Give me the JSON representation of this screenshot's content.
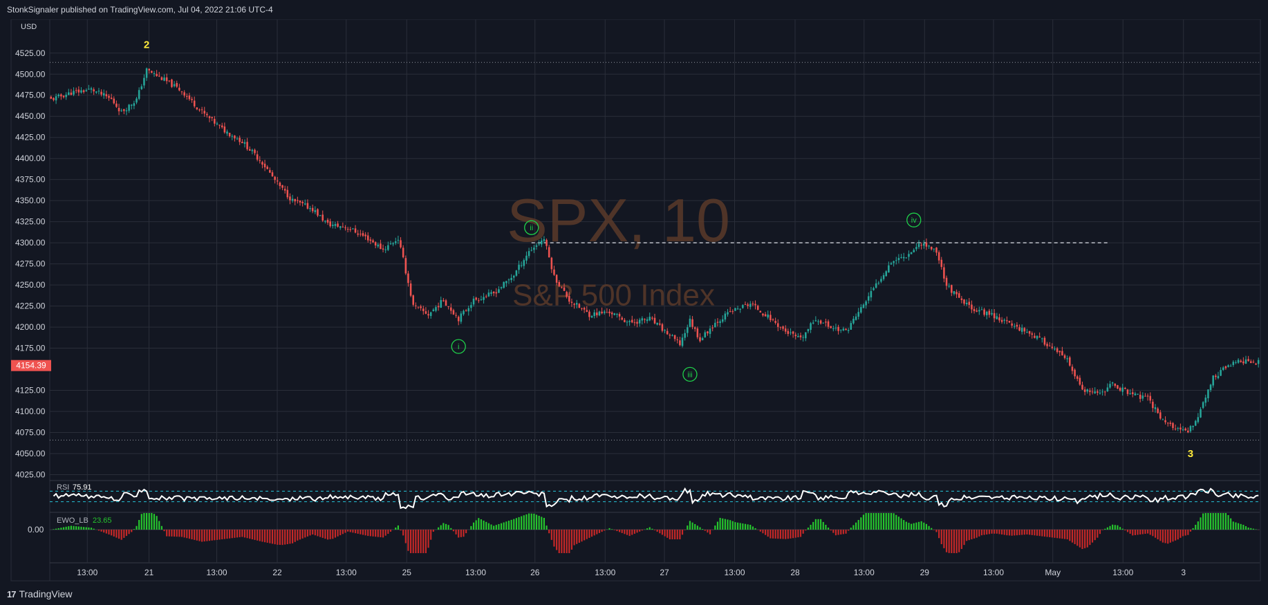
{
  "header": {
    "published_line": "StonkSignaler published on TradingView.com, Jul 04, 2022 21:06 UTC-4"
  },
  "footer": {
    "brand_mark": "17",
    "brand_name": "TradingView"
  },
  "colors": {
    "background": "#131722",
    "grid": "#2a2e39",
    "up_candle": "#26a69a",
    "down_candle": "#ef5350",
    "price_tag": "#ef5350",
    "wave_major": "#ffeb3b",
    "wave_minor": "#1fd14a",
    "watermark": "#5a3a2a",
    "rsi_line": "#ffffff",
    "rsi_band": "#26c6da",
    "ewo_positive": "#26c62e",
    "ewo_negative": "#c62828"
  },
  "chart_data": {
    "type": "candlestick",
    "symbol_watermark": "SPX, 10",
    "name_watermark": "S&P 500 Index",
    "currency_label": "USD",
    "y_ticks": [
      "4525.00",
      "4500.00",
      "4475.00",
      "4450.00",
      "4425.00",
      "4400.00",
      "4375.00",
      "4350.00",
      "4325.00",
      "4300.00",
      "4275.00",
      "4250.00",
      "4225.00",
      "4200.00",
      "4175.00",
      "4125.00",
      "4100.00",
      "4075.00",
      "4050.00",
      "4025.00"
    ],
    "ylim": [
      4018,
      4565
    ],
    "current_price": "4154.39",
    "x_ticks": [
      "13:00",
      "21",
      "13:00",
      "22",
      "13:00",
      "25",
      "13:00",
      "26",
      "13:00",
      "27",
      "13:00",
      "28",
      "13:00",
      "29",
      "13:00",
      "May",
      "13:00",
      "3"
    ],
    "price_path": [
      [
        0,
        4470
      ],
      [
        8,
        4478
      ],
      [
        16,
        4482
      ],
      [
        24,
        4470
      ],
      [
        28,
        4455
      ],
      [
        34,
        4470
      ],
      [
        38,
        4505
      ],
      [
        44,
        4495
      ],
      [
        52,
        4480
      ],
      [
        60,
        4455
      ],
      [
        68,
        4435
      ],
      [
        76,
        4420
      ],
      [
        84,
        4395
      ],
      [
        90,
        4370
      ],
      [
        96,
        4350
      ],
      [
        104,
        4340
      ],
      [
        110,
        4322
      ],
      [
        118,
        4318
      ],
      [
        126,
        4305
      ],
      [
        132,
        4292
      ],
      [
        138,
        4305
      ],
      [
        140,
        4280
      ],
      [
        144,
        4225
      ],
      [
        150,
        4215
      ],
      [
        156,
        4232
      ],
      [
        162,
        4210
      ],
      [
        168,
        4232
      ],
      [
        176,
        4240
      ],
      [
        184,
        4262
      ],
      [
        190,
        4290
      ],
      [
        196,
        4305
      ],
      [
        200,
        4260
      ],
      [
        206,
        4232
      ],
      [
        214,
        4215
      ],
      [
        222,
        4218
      ],
      [
        230,
        4205
      ],
      [
        238,
        4210
      ],
      [
        246,
        4190
      ],
      [
        250,
        4180
      ],
      [
        254,
        4208
      ],
      [
        258,
        4185
      ],
      [
        264,
        4205
      ],
      [
        270,
        4218
      ],
      [
        278,
        4228
      ],
      [
        286,
        4210
      ],
      [
        292,
        4195
      ],
      [
        298,
        4185
      ],
      [
        304,
        4210
      ],
      [
        310,
        4200
      ],
      [
        316,
        4195
      ],
      [
        322,
        4222
      ],
      [
        328,
        4250
      ],
      [
        334,
        4278
      ],
      [
        340,
        4285
      ],
      [
        346,
        4300
      ],
      [
        352,
        4290
      ],
      [
        356,
        4250
      ],
      [
        362,
        4230
      ],
      [
        368,
        4220
      ],
      [
        374,
        4215
      ],
      [
        380,
        4205
      ],
      [
        388,
        4195
      ],
      [
        396,
        4180
      ],
      [
        404,
        4160
      ],
      [
        410,
        4125
      ],
      [
        416,
        4120
      ],
      [
        422,
        4132
      ],
      [
        430,
        4120
      ],
      [
        436,
        4115
      ],
      [
        442,
        4090
      ],
      [
        448,
        4078
      ],
      [
        452,
        4075
      ],
      [
        456,
        4095
      ],
      [
        462,
        4140
      ],
      [
        468,
        4155
      ],
      [
        474,
        4160
      ],
      [
        480,
        4158
      ]
    ],
    "support_level": 4300,
    "range_lines": [
      4514,
      4066
    ],
    "wave_labels": [
      {
        "label": "2",
        "type": "major",
        "bar": 38,
        "price": 4535
      },
      {
        "label": "i",
        "type": "minor",
        "bar": 162,
        "price": 4177
      },
      {
        "label": "ii",
        "type": "minor",
        "bar": 191,
        "price": 4318
      },
      {
        "label": "iii",
        "type": "minor",
        "bar": 254,
        "price": 4144
      },
      {
        "label": "iv",
        "type": "minor",
        "bar": 343,
        "price": 4327
      },
      {
        "label": "3",
        "type": "major",
        "bar": 453,
        "price": 4050
      }
    ],
    "rsi": {
      "name": "RSI",
      "value": "75.91",
      "upper": 70,
      "lower": 30
    },
    "ewo": {
      "name": "EWO_LB",
      "value": "23.65",
      "zero_label": "0.00"
    }
  }
}
